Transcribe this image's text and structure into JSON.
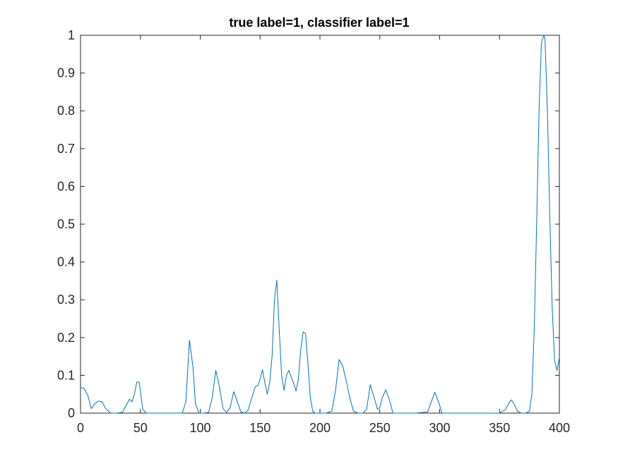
{
  "chart_data": {
    "type": "line",
    "title": "true label=1, classifier label=1",
    "xlabel": "",
    "ylabel": "",
    "xlim": [
      0,
      400
    ],
    "ylim": [
      0,
      1
    ],
    "grid": false,
    "legend": "none",
    "x_ticks": [
      "0",
      "50",
      "100",
      "150",
      "200",
      "250",
      "300",
      "350",
      "400"
    ],
    "y_ticks": [
      "0",
      "0.1",
      "0.2",
      "0.3",
      "0.4",
      "0.5",
      "0.6",
      "0.7",
      "0.8",
      "0.9",
      "1"
    ],
    "series": [
      {
        "color": "#0072BD",
        "x": [
          0,
          3,
          6,
          9,
          12,
          15,
          18,
          21,
          25,
          30,
          35,
          38,
          41,
          43,
          45,
          47,
          49,
          52,
          55,
          60,
          70,
          80,
          85,
          88,
          91,
          94,
          96,
          99,
          103,
          107,
          110,
          113,
          116,
          119,
          122,
          125,
          128,
          131,
          134,
          137,
          140,
          143,
          146,
          148,
          150,
          152,
          154,
          156,
          158,
          160,
          162,
          164,
          166,
          168,
          170,
          172,
          174,
          176,
          178,
          180,
          182,
          184,
          186,
          188,
          190,
          192,
          194,
          196,
          198,
          205,
          210,
          213,
          216,
          219,
          222,
          225,
          228,
          232,
          236,
          239,
          242,
          245,
          248,
          250,
          252,
          255,
          258,
          261,
          265,
          270,
          280,
          290,
          293,
          296,
          299,
          302,
          305,
          310,
          320,
          330,
          340,
          350,
          355,
          358,
          360,
          362,
          365,
          368,
          372,
          375,
          377,
          379,
          381,
          383,
          385,
          387,
          388,
          390,
          392,
          394,
          396,
          398,
          399,
          400
        ],
        "values": [
          0.068,
          0.065,
          0.048,
          0.012,
          0.025,
          0.032,
          0.03,
          0.012,
          0.0,
          0.0,
          0.002,
          0.02,
          0.037,
          0.03,
          0.05,
          0.082,
          0.082,
          0.01,
          0.0,
          0.0,
          0.0,
          0.0,
          0.0,
          0.03,
          0.193,
          0.12,
          0.025,
          0.0,
          0.0,
          0.002,
          0.04,
          0.113,
          0.07,
          0.012,
          0.002,
          0.015,
          0.057,
          0.03,
          0.003,
          0.0,
          0.008,
          0.04,
          0.07,
          0.072,
          0.09,
          0.115,
          0.08,
          0.05,
          0.08,
          0.15,
          0.3,
          0.352,
          0.22,
          0.1,
          0.06,
          0.1,
          0.113,
          0.095,
          0.08,
          0.058,
          0.09,
          0.17,
          0.215,
          0.21,
          0.13,
          0.04,
          0.005,
          0.0,
          0.0,
          0.0,
          0.005,
          0.06,
          0.142,
          0.125,
          0.085,
          0.04,
          0.005,
          0.0,
          0.0,
          0.01,
          0.075,
          0.045,
          0.01,
          0.015,
          0.04,
          0.062,
          0.035,
          0.0,
          0.0,
          0.0,
          0.0,
          0.003,
          0.03,
          0.055,
          0.03,
          0.0,
          0.0,
          0.0,
          0.0,
          0.0,
          0.0,
          0.0,
          0.01,
          0.028,
          0.035,
          0.025,
          0.005,
          0.0,
          0.0,
          0.005,
          0.05,
          0.22,
          0.5,
          0.8,
          0.98,
          1.0,
          0.99,
          0.8,
          0.52,
          0.28,
          0.14,
          0.113,
          0.13,
          0.148
        ]
      }
    ]
  }
}
